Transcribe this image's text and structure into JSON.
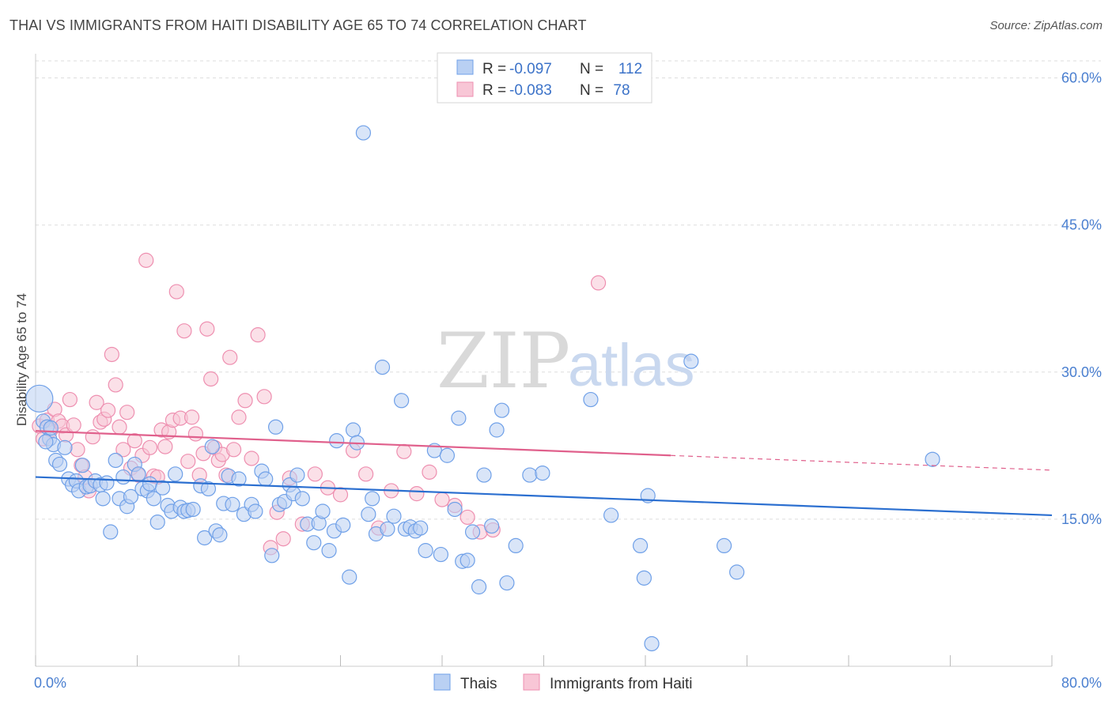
{
  "title": "THAI VS IMMIGRANTS FROM HAITI DISABILITY AGE 65 TO 74 CORRELATION CHART",
  "source": "Source: ZipAtlas.com",
  "watermark": {
    "part1": "ZIP",
    "part2": "atlas"
  },
  "colors": {
    "thai": "#6fa0e8",
    "thai_fill": "#b9d0f3",
    "thai_line": "#2b6fd0",
    "haiti": "#ee8fb0",
    "haiti_fill": "#f8c6d6",
    "haiti_line": "#e0608c",
    "grid": "#dddddd",
    "tick": "#4a7fd0"
  },
  "legend": {
    "rows": [
      {
        "r_label": "R =",
        "r_value": "-0.097",
        "n_label": "N =",
        "n_value": "112"
      },
      {
        "r_label": "R =",
        "r_value": "-0.083",
        "n_label": "N =",
        "n_value": "78"
      }
    ],
    "bottom": [
      "Thais",
      "Immigrants from Haiti"
    ]
  },
  "chart_data": {
    "type": "scatter",
    "title": "THAI VS IMMIGRANTS FROM HAITI DISABILITY AGE 65 TO 74 CORRELATION CHART",
    "xlabel": "",
    "ylabel": "Disability Age 65 to 74",
    "xlim": [
      0,
      80
    ],
    "ylim": [
      0,
      61.5
    ],
    "x_tick_labels": [
      "0.0%",
      "80.0%"
    ],
    "y_ticks": [
      15,
      30,
      45,
      60
    ],
    "y_tick_labels": [
      "15.0%",
      "30.0%",
      "45.0%",
      "60.0%"
    ],
    "grid": true,
    "legend_position": "top-center",
    "series": [
      {
        "name": "Thais",
        "r": -0.097,
        "n": 112,
        "trend": {
          "x": [
            0,
            80
          ],
          "y": [
            19.3,
            15.4
          ],
          "solid_to": 80
        },
        "points": [
          [
            0.3,
            27.3
          ],
          [
            0.6,
            25.0
          ],
          [
            0.9,
            24.4
          ],
          [
            1.1,
            23.2
          ],
          [
            1.4,
            22.6
          ],
          [
            1.6,
            21.0
          ],
          [
            1.9,
            20.6
          ],
          [
            2.3,
            22.3
          ],
          [
            2.6,
            19.1
          ],
          [
            2.9,
            18.5
          ],
          [
            3.2,
            18.9
          ],
          [
            3.4,
            17.9
          ],
          [
            3.7,
            20.5
          ],
          [
            4.0,
            18.3
          ],
          [
            4.3,
            18.4
          ],
          [
            4.7,
            18.9
          ],
          [
            5.1,
            18.5
          ],
          [
            5.3,
            17.1
          ],
          [
            5.6,
            18.7
          ],
          [
            5.9,
            13.7
          ],
          [
            6.3,
            21.0
          ],
          [
            6.6,
            17.1
          ],
          [
            6.9,
            19.3
          ],
          [
            7.2,
            16.3
          ],
          [
            7.5,
            17.3
          ],
          [
            7.8,
            20.6
          ],
          [
            8.1,
            19.6
          ],
          [
            8.4,
            18.1
          ],
          [
            8.8,
            17.9
          ],
          [
            9.0,
            18.6
          ],
          [
            9.3,
            17.1
          ],
          [
            9.6,
            14.7
          ],
          [
            10.0,
            18.2
          ],
          [
            10.4,
            16.4
          ],
          [
            10.7,
            15.8
          ],
          [
            11.0,
            19.6
          ],
          [
            11.4,
            16.2
          ],
          [
            11.7,
            15.8
          ],
          [
            12.0,
            15.9
          ],
          [
            12.4,
            16.0
          ],
          [
            13.0,
            18.4
          ],
          [
            13.3,
            13.1
          ],
          [
            13.6,
            18.1
          ],
          [
            13.9,
            22.4
          ],
          [
            14.2,
            13.8
          ],
          [
            14.5,
            13.4
          ],
          [
            14.8,
            16.6
          ],
          [
            15.2,
            19.4
          ],
          [
            15.5,
            16.5
          ],
          [
            16.0,
            19.1
          ],
          [
            16.4,
            15.5
          ],
          [
            17.0,
            16.5
          ],
          [
            17.3,
            15.8
          ],
          [
            17.8,
            19.9
          ],
          [
            18.1,
            19.1
          ],
          [
            18.6,
            11.3
          ],
          [
            18.9,
            24.4
          ],
          [
            19.2,
            16.5
          ],
          [
            19.6,
            16.8
          ],
          [
            20.0,
            18.5
          ],
          [
            20.3,
            17.6
          ],
          [
            20.6,
            19.5
          ],
          [
            21.0,
            17.1
          ],
          [
            21.4,
            14.5
          ],
          [
            21.9,
            12.6
          ],
          [
            22.3,
            14.6
          ],
          [
            22.6,
            15.8
          ],
          [
            23.1,
            11.8
          ],
          [
            23.5,
            13.8
          ],
          [
            23.7,
            23.0
          ],
          [
            24.2,
            14.4
          ],
          [
            24.7,
            9.1
          ],
          [
            25.0,
            24.1
          ],
          [
            25.3,
            22.8
          ],
          [
            25.8,
            54.4
          ],
          [
            26.2,
            15.5
          ],
          [
            26.5,
            17.1
          ],
          [
            26.8,
            13.5
          ],
          [
            27.3,
            30.5
          ],
          [
            27.7,
            14.0
          ],
          [
            28.2,
            15.3
          ],
          [
            28.8,
            27.1
          ],
          [
            29.1,
            14.0
          ],
          [
            29.5,
            14.2
          ],
          [
            29.9,
            13.8
          ],
          [
            30.3,
            14.1
          ],
          [
            30.7,
            11.8
          ],
          [
            31.4,
            22.0
          ],
          [
            31.9,
            11.4
          ],
          [
            32.4,
            21.5
          ],
          [
            33.0,
            16.0
          ],
          [
            33.3,
            25.3
          ],
          [
            33.6,
            10.7
          ],
          [
            34.0,
            10.8
          ],
          [
            34.4,
            13.7
          ],
          [
            34.9,
            8.1
          ],
          [
            35.3,
            19.5
          ],
          [
            35.9,
            14.3
          ],
          [
            36.3,
            24.1
          ],
          [
            36.7,
            26.1
          ],
          [
            37.1,
            8.5
          ],
          [
            37.8,
            12.3
          ],
          [
            38.9,
            19.5
          ],
          [
            39.9,
            19.7
          ],
          [
            43.7,
            27.2
          ],
          [
            45.3,
            15.4
          ],
          [
            47.6,
            12.3
          ],
          [
            47.9,
            9.0
          ],
          [
            48.2,
            17.4
          ],
          [
            48.5,
            2.3
          ],
          [
            51.6,
            31.1
          ],
          [
            54.2,
            12.3
          ],
          [
            55.2,
            9.6
          ],
          [
            70.6,
            21.1
          ],
          [
            0.8,
            22.9
          ],
          [
            1.2,
            24.3
          ]
        ]
      },
      {
        "name": "Immigrants from Haiti",
        "r": -0.083,
        "n": 78,
        "trend": {
          "x": [
            0,
            80
          ],
          "y": [
            24.0,
            20.0
          ],
          "solid_to": 50
        },
        "points": [
          [
            0.3,
            24.5
          ],
          [
            0.6,
            23.2
          ],
          [
            0.9,
            25.1
          ],
          [
            1.2,
            24.1
          ],
          [
            1.5,
            26.2
          ],
          [
            1.8,
            25.0
          ],
          [
            2.1,
            24.5
          ],
          [
            2.4,
            23.6
          ],
          [
            2.7,
            27.2
          ],
          [
            3.0,
            24.6
          ],
          [
            3.3,
            22.1
          ],
          [
            3.6,
            20.5
          ],
          [
            3.9,
            19.3
          ],
          [
            4.2,
            17.9
          ],
          [
            4.5,
            23.4
          ],
          [
            4.8,
            26.9
          ],
          [
            5.1,
            24.9
          ],
          [
            5.4,
            25.2
          ],
          [
            5.7,
            26.1
          ],
          [
            6.0,
            31.8
          ],
          [
            6.3,
            28.7
          ],
          [
            6.6,
            24.4
          ],
          [
            6.9,
            22.1
          ],
          [
            7.2,
            25.9
          ],
          [
            7.5,
            20.2
          ],
          [
            7.8,
            23.0
          ],
          [
            8.1,
            19.5
          ],
          [
            8.4,
            21.5
          ],
          [
            8.7,
            41.4
          ],
          [
            9.0,
            22.3
          ],
          [
            9.3,
            19.4
          ],
          [
            9.6,
            19.3
          ],
          [
            9.9,
            24.1
          ],
          [
            10.2,
            22.4
          ],
          [
            10.5,
            23.9
          ],
          [
            10.8,
            25.1
          ],
          [
            11.1,
            38.2
          ],
          [
            11.4,
            25.3
          ],
          [
            11.7,
            34.2
          ],
          [
            12.0,
            20.9
          ],
          [
            12.3,
            25.4
          ],
          [
            12.6,
            23.7
          ],
          [
            12.9,
            19.5
          ],
          [
            13.2,
            21.7
          ],
          [
            13.5,
            34.4
          ],
          [
            13.8,
            29.3
          ],
          [
            14.1,
            22.3
          ],
          [
            14.4,
            21.0
          ],
          [
            14.7,
            21.6
          ],
          [
            15.0,
            19.5
          ],
          [
            15.3,
            31.5
          ],
          [
            15.6,
            22.1
          ],
          [
            16.0,
            25.4
          ],
          [
            16.5,
            27.1
          ],
          [
            17.0,
            21.2
          ],
          [
            17.5,
            33.8
          ],
          [
            18.0,
            27.5
          ],
          [
            18.5,
            12.1
          ],
          [
            19.0,
            15.7
          ],
          [
            19.5,
            13.0
          ],
          [
            20.0,
            19.2
          ],
          [
            21.0,
            14.5
          ],
          [
            22.0,
            19.6
          ],
          [
            23.0,
            18.2
          ],
          [
            24.0,
            17.5
          ],
          [
            25.0,
            22.0
          ],
          [
            26.0,
            19.6
          ],
          [
            27.0,
            14.1
          ],
          [
            28.0,
            17.9
          ],
          [
            29.0,
            21.9
          ],
          [
            30.0,
            17.6
          ],
          [
            31.0,
            19.8
          ],
          [
            32.0,
            17.0
          ],
          [
            33.0,
            16.4
          ],
          [
            34.0,
            15.2
          ],
          [
            35.0,
            13.7
          ],
          [
            36.0,
            13.9
          ],
          [
            44.3,
            39.1
          ]
        ]
      }
    ]
  }
}
